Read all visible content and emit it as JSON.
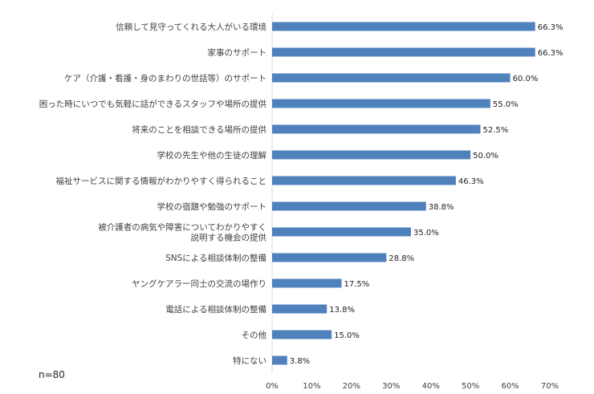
{
  "note": "n=80",
  "chart_data": {
    "type": "bar",
    "orientation": "horizontal",
    "title": "",
    "xlabel": "",
    "ylabel": "",
    "categories": [
      "信頼して見守ってくれる大人がいる環境",
      "家事のサポート",
      "ケア（介護・看護・身のまわりの世話等）のサポート",
      "困った時にいつでも気軽に話ができるスタッフや場所の提供",
      "将来のことを相談できる場所の提供",
      "学校の先生や他の生徒の理解",
      "福祉サービスに関する情報がわかりやすく得られること",
      "学校の宿題や勉強のサポート",
      "被介護者の病気や障害についてわかりやすく\n説明する機会の提供",
      "SNSによる相談体制の整備",
      "ヤングケアラー同士の交流の場作り",
      "電話による相談体制の整備",
      "その他",
      "特にない"
    ],
    "values": [
      66.3,
      66.3,
      60.0,
      55.0,
      52.5,
      50.0,
      46.3,
      38.8,
      35.0,
      28.8,
      17.5,
      13.8,
      15.0,
      3.8
    ],
    "value_labels": [
      "66.3%",
      "66.3%",
      "60.0%",
      "55.0%",
      "52.5%",
      "50.0%",
      "46.3%",
      "38.8%",
      "35.0%",
      "28.8%",
      "17.5%",
      "13.8%",
      "15.0%",
      "3.8%"
    ],
    "xlim": [
      0,
      70
    ],
    "xticks": [
      0,
      10,
      20,
      30,
      40,
      50,
      60,
      70
    ],
    "xtick_labels": [
      "0%",
      "10%",
      "20%",
      "30%",
      "40%",
      "50%",
      "60%",
      "70%"
    ],
    "grid": false,
    "bar_color": "#4f81bd"
  }
}
